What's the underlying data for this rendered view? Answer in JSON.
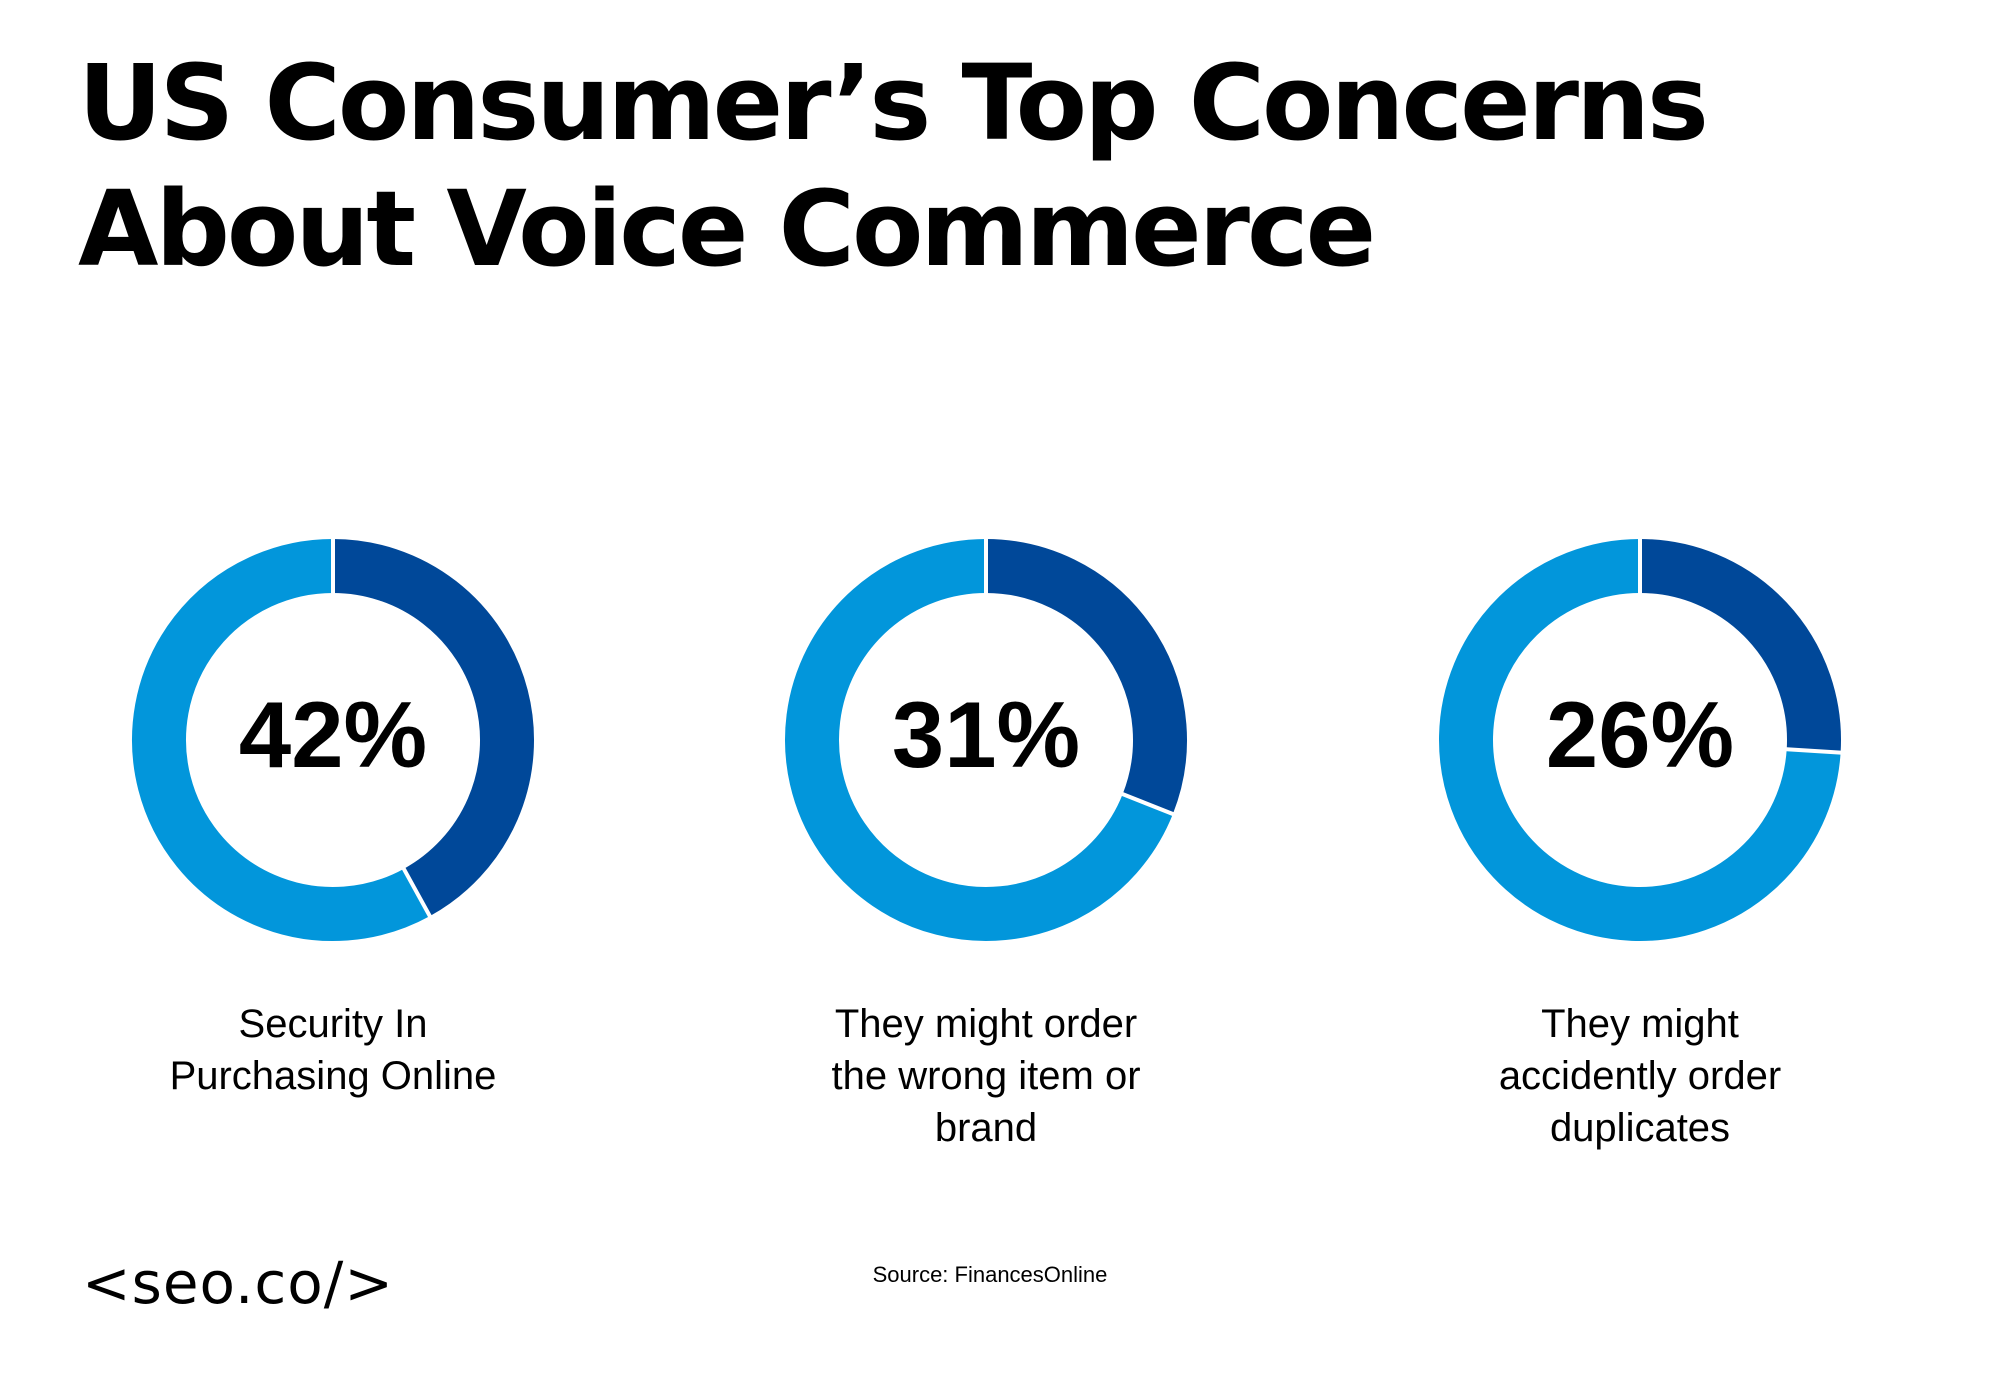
{
  "chart_data": {
    "type": "pie",
    "title": [
      "US Consumer’s Top Concerns",
      "About Voice Commerce"
    ],
    "items": [
      {
        "value": 42,
        "value_label": "42%",
        "label_lines": [
          "Security In",
          "Purchasing Online"
        ]
      },
      {
        "value": 31,
        "value_label": "31%",
        "label_lines": [
          "They might order",
          "the wrong item or",
          "brand"
        ]
      },
      {
        "value": 26,
        "value_label": "26%",
        "label_lines": [
          "They might",
          "accidently order",
          "duplicates"
        ]
      }
    ],
    "total": 100
  },
  "colors": {
    "highlight": "#004899",
    "remainder": "#0296db",
    "separator": "#ffffff",
    "text": "#000000"
  },
  "footer": {
    "logo": "<seo.co/>",
    "source": "Source: FinancesOnline"
  }
}
